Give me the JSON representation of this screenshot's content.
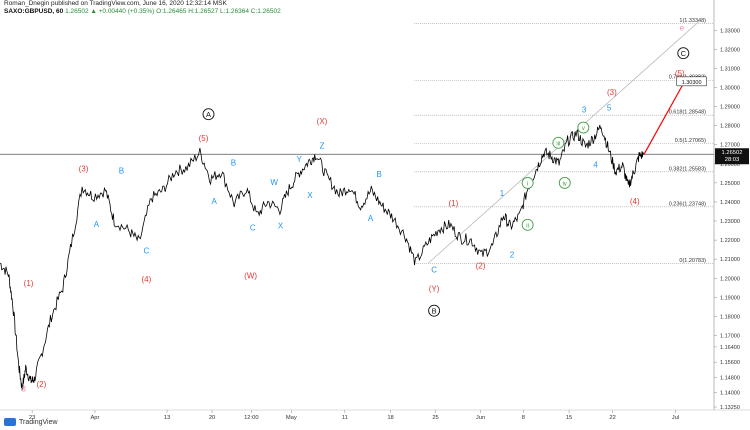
{
  "header": {
    "publish_line": "Roman_Dnegin published on TradingView.com, June 16, 2020 12:32:14 MSK",
    "symbol": "SAXO:GBPUSD, 60",
    "ohlc_text": "1.26502 ▲ +0.00440 (+0.35%) O:1.26465 H:1.26527 L:1.26364 C:1.26502"
  },
  "footer": {
    "brand": "TradingView"
  },
  "colors": {
    "price_line": "#000000",
    "red_labels": "#e53935",
    "blue_labels": "#2196f3",
    "green_labels": "#43a047",
    "pink_label": "#f48fb1",
    "fib_line": "#9e9e9e",
    "projection_arrow": "#ff0000"
  },
  "chart_data": {
    "type": "line",
    "title": "",
    "xlabel": "",
    "ylabel": "",
    "ylim": [
      1.1325,
      1.3375
    ],
    "grid": false,
    "x_ticks": [
      "23",
      "Apr",
      "13",
      "20",
      "12:00",
      "May",
      "11",
      "18",
      "25",
      "Jun",
      "8",
      "15",
      "22",
      "Jul"
    ],
    "y_ticks": [
      "1.33000",
      "1.32000",
      "1.31000",
      "1.30000",
      "1.29000",
      "1.28000",
      "1.27000",
      "1.26000",
      "1.25000",
      "1.24000",
      "1.23000",
      "1.22000",
      "1.21000",
      "1.20000",
      "1.19000",
      "1.18000",
      "1.17000",
      "1.16400",
      "1.15600",
      "1.14800",
      "1.14000",
      "1.13250"
    ],
    "current_price": {
      "label": "1.26502",
      "countdown": "28:03",
      "value": 1.26502
    },
    "price_path": [
      {
        "x": 0.0,
        "y": 1.208
      },
      {
        "x": 0.012,
        "y": 1.202
      },
      {
        "x": 0.018,
        "y": 1.186
      },
      {
        "x": 0.026,
        "y": 1.155
      },
      {
        "x": 0.031,
        "y": 1.142
      },
      {
        "x": 0.036,
        "y": 1.153
      },
      {
        "x": 0.043,
        "y": 1.146
      },
      {
        "x": 0.048,
        "y": 1.147
      },
      {
        "x": 0.058,
        "y": 1.16
      },
      {
        "x": 0.072,
        "y": 1.18
      },
      {
        "x": 0.088,
        "y": 1.195
      },
      {
        "x": 0.1,
        "y": 1.218
      },
      {
        "x": 0.115,
        "y": 1.248
      },
      {
        "x": 0.13,
        "y": 1.243
      },
      {
        "x": 0.148,
        "y": 1.246
      },
      {
        "x": 0.16,
        "y": 1.23
      },
      {
        "x": 0.18,
        "y": 1.225
      },
      {
        "x": 0.195,
        "y": 1.219
      },
      {
        "x": 0.212,
        "y": 1.242
      },
      {
        "x": 0.228,
        "y": 1.246
      },
      {
        "x": 0.245,
        "y": 1.256
      },
      {
        "x": 0.262,
        "y": 1.258
      },
      {
        "x": 0.28,
        "y": 1.266
      },
      {
        "x": 0.295,
        "y": 1.252
      },
      {
        "x": 0.31,
        "y": 1.256
      },
      {
        "x": 0.328,
        "y": 1.239
      },
      {
        "x": 0.345,
        "y": 1.247
      },
      {
        "x": 0.36,
        "y": 1.233
      },
      {
        "x": 0.375,
        "y": 1.24
      },
      {
        "x": 0.392,
        "y": 1.236
      },
      {
        "x": 0.405,
        "y": 1.247
      },
      {
        "x": 0.418,
        "y": 1.255
      },
      {
        "x": 0.432,
        "y": 1.261
      },
      {
        "x": 0.443,
        "y": 1.265
      },
      {
        "x": 0.458,
        "y": 1.253
      },
      {
        "x": 0.475,
        "y": 1.244
      },
      {
        "x": 0.49,
        "y": 1.248
      },
      {
        "x": 0.505,
        "y": 1.238
      },
      {
        "x": 0.52,
        "y": 1.246
      },
      {
        "x": 0.535,
        "y": 1.238
      },
      {
        "x": 0.55,
        "y": 1.232
      },
      {
        "x": 0.568,
        "y": 1.222
      },
      {
        "x": 0.582,
        "y": 1.208
      },
      {
        "x": 0.6,
        "y": 1.219
      },
      {
        "x": 0.615,
        "y": 1.226
      },
      {
        "x": 0.63,
        "y": 1.228
      },
      {
        "x": 0.645,
        "y": 1.221
      },
      {
        "x": 0.66,
        "y": 1.22
      },
      {
        "x": 0.675,
        "y": 1.212
      },
      {
        "x": 0.69,
        "y": 1.217
      },
      {
        "x": 0.705,
        "y": 1.233
      },
      {
        "x": 0.715,
        "y": 1.227
      },
      {
        "x": 0.728,
        "y": 1.233
      },
      {
        "x": 0.74,
        "y": 1.248
      },
      {
        "x": 0.752,
        "y": 1.258
      },
      {
        "x": 0.762,
        "y": 1.266
      },
      {
        "x": 0.772,
        "y": 1.264
      },
      {
        "x": 0.783,
        "y": 1.26
      },
      {
        "x": 0.795,
        "y": 1.272
      },
      {
        "x": 0.808,
        "y": 1.276
      },
      {
        "x": 0.82,
        "y": 1.269
      },
      {
        "x": 0.832,
        "y": 1.274
      },
      {
        "x": 0.842,
        "y": 1.28
      },
      {
        "x": 0.852,
        "y": 1.268
      },
      {
        "x": 0.862,
        "y": 1.256
      },
      {
        "x": 0.872,
        "y": 1.259
      },
      {
        "x": 0.88,
        "y": 1.248
      },
      {
        "x": 0.888,
        "y": 1.256
      },
      {
        "x": 0.895,
        "y": 1.264
      },
      {
        "x": 0.902,
        "y": 1.265
      }
    ],
    "fib_levels": [
      {
        "label": "1(1.33348)",
        "value": 1.33348
      },
      {
        "label": "0.764(1.30382)",
        "value": 1.30382
      },
      {
        "label": "0.618(1.28548)",
        "value": 1.28548
      },
      {
        "label": "0.5(1.27065)",
        "value": 1.27065
      },
      {
        "label": "0.382(1.25583)",
        "value": 1.25583
      },
      {
        "label": "0.236(1.23748)",
        "value": 1.23748
      },
      {
        "label": "0(1.20783)",
        "value": 1.20783
      }
    ],
    "target_label": {
      "text": "1.30300",
      "value": 1.303
    },
    "trend_line": [
      {
        "x": 0.6,
        "y": 1.208
      },
      {
        "x": 0.98,
        "y": 1.335
      }
    ],
    "projection": [
      {
        "x": 0.902,
        "y": 1.265
      },
      {
        "x": 0.96,
        "y": 1.304
      }
    ],
    "wave_labels": [
      {
        "text": "d",
        "x": 0.033,
        "y": 1.1405,
        "color": "pink"
      },
      {
        "text": "(2)",
        "x": 0.058,
        "y": 1.143,
        "color": "red"
      },
      {
        "text": "(1)",
        "x": 0.04,
        "y": 1.196,
        "color": "red"
      },
      {
        "text": "(3)",
        "x": 0.117,
        "y": 1.256,
        "color": "red"
      },
      {
        "text": "A",
        "x": 0.135,
        "y": 1.227,
        "color": "blue"
      },
      {
        "text": "B",
        "x": 0.17,
        "y": 1.255,
        "color": "blue"
      },
      {
        "text": "C",
        "x": 0.205,
        "y": 1.213,
        "color": "blue"
      },
      {
        "text": "(4)",
        "x": 0.205,
        "y": 1.198,
        "color": "red"
      },
      {
        "text": "(5)",
        "x": 0.285,
        "y": 1.272,
        "color": "red"
      },
      {
        "text": "A",
        "x": 0.3,
        "y": 1.239,
        "color": "blue"
      },
      {
        "text": "B",
        "x": 0.327,
        "y": 1.259,
        "color": "blue"
      },
      {
        "text": "C",
        "x": 0.354,
        "y": 1.225,
        "color": "blue"
      },
      {
        "text": "W",
        "x": 0.384,
        "y": 1.249,
        "color": "blue"
      },
      {
        "text": "X",
        "x": 0.393,
        "y": 1.226,
        "color": "blue"
      },
      {
        "text": "Y",
        "x": 0.419,
        "y": 1.261,
        "color": "blue"
      },
      {
        "text": "X",
        "x": 0.434,
        "y": 1.242,
        "color": "blue"
      },
      {
        "text": "(W)",
        "x": 0.351,
        "y": 1.2,
        "color": "red"
      },
      {
        "text": "(X)",
        "x": 0.451,
        "y": 1.281,
        "color": "red"
      },
      {
        "text": "Z",
        "x": 0.451,
        "y": 1.268,
        "color": "blue"
      },
      {
        "text": "B",
        "x": 0.531,
        "y": 1.253,
        "color": "blue"
      },
      {
        "text": "A",
        "x": 0.519,
        "y": 1.23,
        "color": "blue"
      },
      {
        "text": "C",
        "x": 0.608,
        "y": 1.203,
        "color": "blue"
      },
      {
        "text": "(Y)",
        "x": 0.608,
        "y": 1.193,
        "color": "red"
      },
      {
        "text": "(1)",
        "x": 0.635,
        "y": 1.238,
        "color": "red"
      },
      {
        "text": "1",
        "x": 0.703,
        "y": 1.243,
        "color": "blue"
      },
      {
        "text": "(2)",
        "x": 0.673,
        "y": 1.205,
        "color": "red"
      },
      {
        "text": "2",
        "x": 0.717,
        "y": 1.211,
        "color": "blue"
      },
      {
        "text": "3",
        "x": 0.818,
        "y": 1.287,
        "color": "blue"
      },
      {
        "text": "5",
        "x": 0.853,
        "y": 1.288,
        "color": "blue"
      },
      {
        "text": "4",
        "x": 0.834,
        "y": 1.258,
        "color": "blue"
      },
      {
        "text": "(3)",
        "x": 0.857,
        "y": 1.296,
        "color": "red"
      },
      {
        "text": "(4)",
        "x": 0.889,
        "y": 1.239,
        "color": "red"
      },
      {
        "text": "(5)",
        "x": 0.952,
        "y": 1.306,
        "color": "red"
      },
      {
        "text": "e",
        "x": 0.955,
        "y": 1.33,
        "color": "pink"
      }
    ],
    "circled_labels": [
      {
        "text": "A",
        "x": 0.292,
        "y": 1.286,
        "color": "black"
      },
      {
        "text": "B",
        "x": 0.608,
        "y": 1.183,
        "color": "black"
      },
      {
        "text": "C",
        "x": 0.957,
        "y": 1.318,
        "color": "black"
      },
      {
        "text": "i",
        "x": 0.739,
        "y": 1.25,
        "color": "green"
      },
      {
        "text": "ii",
        "x": 0.739,
        "y": 1.228,
        "color": "green"
      },
      {
        "text": "iii",
        "x": 0.782,
        "y": 1.271,
        "color": "green"
      },
      {
        "text": "iv",
        "x": 0.791,
        "y": 1.25,
        "color": "green"
      },
      {
        "text": "v",
        "x": 0.817,
        "y": 1.279,
        "color": "green"
      }
    ]
  }
}
